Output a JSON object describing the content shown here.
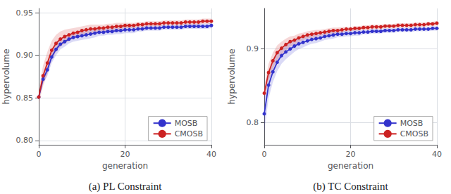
{
  "chart_data": [
    {
      "type": "line",
      "title": "(a) PL Constraint",
      "xlabel": "generation",
      "ylabel": "hypervolume",
      "x": [
        0,
        1,
        2,
        3,
        4,
        5,
        6,
        7,
        8,
        9,
        10,
        11,
        12,
        13,
        14,
        15,
        16,
        17,
        18,
        19,
        20,
        21,
        22,
        23,
        24,
        25,
        26,
        27,
        28,
        29,
        30,
        31,
        32,
        33,
        34,
        35,
        36,
        37,
        38,
        39,
        40
      ],
      "series": [
        {
          "name": "MOSB",
          "color": "#3333cc",
          "values": [
            0.851,
            0.872,
            0.883,
            0.898,
            0.907,
            0.913,
            0.916,
            0.919,
            0.921,
            0.922,
            0.923,
            0.924,
            0.925,
            0.926,
            0.927,
            0.927,
            0.928,
            0.928,
            0.929,
            0.929,
            0.93,
            0.93,
            0.93,
            0.931,
            0.931,
            0.932,
            0.932,
            0.932,
            0.932,
            0.933,
            0.933,
            0.933,
            0.933,
            0.933,
            0.934,
            0.934,
            0.934,
            0.934,
            0.934,
            0.934,
            0.935
          ],
          "std": [
            0.003,
            0.005,
            0.007,
            0.007,
            0.007,
            0.006,
            0.006,
            0.005,
            0.005,
            0.005,
            0.005,
            0.005,
            0.005,
            0.005,
            0.004,
            0.004,
            0.004,
            0.004,
            0.004,
            0.004,
            0.004,
            0.004,
            0.004,
            0.003,
            0.003,
            0.003,
            0.003,
            0.003,
            0.003,
            0.003,
            0.003,
            0.003,
            0.003,
            0.003,
            0.003,
            0.003,
            0.003,
            0.003,
            0.003,
            0.003,
            0.003
          ]
        },
        {
          "name": "CMOSB",
          "color": "#cc2222",
          "values": [
            0.851,
            0.876,
            0.891,
            0.906,
            0.914,
            0.919,
            0.922,
            0.924,
            0.926,
            0.927,
            0.929,
            0.93,
            0.931,
            0.931,
            0.932,
            0.932,
            0.933,
            0.933,
            0.934,
            0.934,
            0.935,
            0.935,
            0.935,
            0.936,
            0.936,
            0.937,
            0.937,
            0.937,
            0.937,
            0.938,
            0.938,
            0.938,
            0.938,
            0.938,
            0.939,
            0.939,
            0.939,
            0.939,
            0.94,
            0.94,
            0.94
          ],
          "std": [
            0.008,
            0.012,
            0.013,
            0.011,
            0.01,
            0.009,
            0.008,
            0.007,
            0.006,
            0.006,
            0.005,
            0.005,
            0.005,
            0.005,
            0.004,
            0.004,
            0.004,
            0.004,
            0.004,
            0.004,
            0.003,
            0.003,
            0.003,
            0.003,
            0.003,
            0.003,
            0.003,
            0.003,
            0.003,
            0.003,
            0.003,
            0.003,
            0.003,
            0.003,
            0.003,
            0.003,
            0.003,
            0.003,
            0.003,
            0.003,
            0.003
          ]
        }
      ],
      "xlim": [
        0,
        40
      ],
      "xticks": [
        0,
        20,
        40
      ],
      "ylim": [
        0.795,
        0.955
      ],
      "yticks": [
        {
          "value": 0.8,
          "label": "0.80"
        },
        0.85,
        {
          "value": 0.9,
          "label": "0.90"
        },
        0.95
      ],
      "grid": true,
      "legend": "lower right",
      "marker": "circle"
    },
    {
      "type": "line",
      "title": "(b) TC Constraint",
      "xlabel": "generation",
      "ylabel": "hypervolume",
      "x": [
        0,
        1,
        2,
        3,
        4,
        5,
        6,
        7,
        8,
        9,
        10,
        11,
        12,
        13,
        14,
        15,
        16,
        17,
        18,
        19,
        20,
        21,
        22,
        23,
        24,
        25,
        26,
        27,
        28,
        29,
        30,
        31,
        32,
        33,
        34,
        35,
        36,
        37,
        38,
        39,
        40
      ],
      "series": [
        {
          "name": "MOSB",
          "color": "#3333cc",
          "values": [
            0.812,
            0.851,
            0.869,
            0.882,
            0.891,
            0.896,
            0.9,
            0.904,
            0.907,
            0.909,
            0.911,
            0.913,
            0.914,
            0.915,
            0.917,
            0.918,
            0.919,
            0.92,
            0.92,
            0.921,
            0.921,
            0.922,
            0.922,
            0.923,
            0.923,
            0.924,
            0.924,
            0.924,
            0.925,
            0.925,
            0.925,
            0.926,
            0.926,
            0.926,
            0.926,
            0.927,
            0.927,
            0.927,
            0.927,
            0.928,
            0.928
          ],
          "std": [
            0.025,
            0.018,
            0.014,
            0.012,
            0.011,
            0.01,
            0.009,
            0.008,
            0.007,
            0.007,
            0.006,
            0.006,
            0.006,
            0.005,
            0.005,
            0.005,
            0.005,
            0.004,
            0.004,
            0.004,
            0.004,
            0.004,
            0.004,
            0.003,
            0.003,
            0.003,
            0.003,
            0.003,
            0.003,
            0.003,
            0.003,
            0.003,
            0.003,
            0.003,
            0.003,
            0.003,
            0.003,
            0.003,
            0.003,
            0.003,
            0.003
          ]
        },
        {
          "name": "CMOSB",
          "color": "#cc2222",
          "values": [
            0.84,
            0.868,
            0.884,
            0.895,
            0.901,
            0.906,
            0.91,
            0.912,
            0.915,
            0.917,
            0.919,
            0.92,
            0.921,
            0.922,
            0.923,
            0.924,
            0.925,
            0.925,
            0.926,
            0.927,
            0.927,
            0.928,
            0.928,
            0.929,
            0.929,
            0.93,
            0.93,
            0.93,
            0.931,
            0.931,
            0.931,
            0.932,
            0.932,
            0.932,
            0.932,
            0.933,
            0.933,
            0.933,
            0.934,
            0.934,
            0.935
          ],
          "std": [
            0.01,
            0.012,
            0.011,
            0.01,
            0.009,
            0.008,
            0.007,
            0.006,
            0.006,
            0.005,
            0.005,
            0.005,
            0.005,
            0.004,
            0.004,
            0.004,
            0.004,
            0.004,
            0.004,
            0.003,
            0.003,
            0.003,
            0.003,
            0.003,
            0.003,
            0.003,
            0.003,
            0.003,
            0.003,
            0.003,
            0.003,
            0.003,
            0.003,
            0.003,
            0.003,
            0.003,
            0.003,
            0.003,
            0.003,
            0.003,
            0.003
          ]
        }
      ],
      "xlim": [
        0,
        40
      ],
      "xticks": [
        0,
        20,
        40
      ],
      "ylim": [
        0.77,
        0.955
      ],
      "yticks": [
        0.8,
        0.9
      ],
      "grid": true,
      "legend": "lower right",
      "marker": "circle"
    }
  ]
}
